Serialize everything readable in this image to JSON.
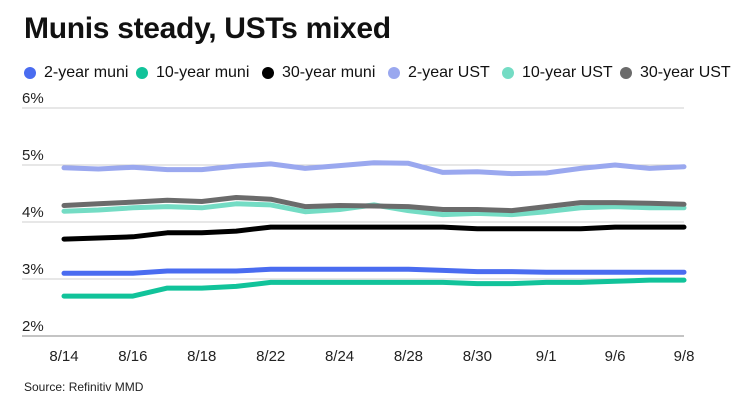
{
  "chart_data": {
    "type": "line",
    "title": "Munis steady, USTs mixed",
    "source": "Source: Refinitiv MMD",
    "y_unit_suffix": "%",
    "ylim": [
      2,
      6
    ],
    "yticks": [
      2,
      3,
      4,
      5,
      6
    ],
    "grid": "horizontal",
    "legend_position": "top",
    "x": [
      "8/14",
      "8/15",
      "8/16",
      "8/17",
      "8/18",
      "8/21",
      "8/22",
      "8/23",
      "8/24",
      "8/25",
      "8/28",
      "8/29",
      "8/30",
      "8/31",
      "9/1",
      "9/5",
      "9/6",
      "9/7",
      "9/8"
    ],
    "xticks": [
      "8/14",
      "8/16",
      "8/18",
      "8/22",
      "8/24",
      "8/28",
      "8/30",
      "9/1",
      "9/6",
      "9/8"
    ],
    "series": [
      {
        "name": "2-year muni",
        "color": "#4a6cf0",
        "values": [
          3.1,
          3.1,
          3.1,
          3.14,
          3.14,
          3.14,
          3.17,
          3.17,
          3.17,
          3.17,
          3.17,
          3.15,
          3.13,
          3.13,
          3.12,
          3.12,
          3.12,
          3.12,
          3.12
        ]
      },
      {
        "name": "10-year muni",
        "color": "#11c39a",
        "values": [
          2.7,
          2.7,
          2.7,
          2.84,
          2.84,
          2.87,
          2.94,
          2.94,
          2.94,
          2.94,
          2.94,
          2.94,
          2.92,
          2.92,
          2.94,
          2.94,
          2.96,
          2.98,
          2.98
        ]
      },
      {
        "name": "30-year muni",
        "color": "#000000",
        "values": [
          3.7,
          3.72,
          3.74,
          3.81,
          3.81,
          3.84,
          3.91,
          3.91,
          3.91,
          3.91,
          3.91,
          3.91,
          3.88,
          3.88,
          3.88,
          3.88,
          3.91,
          3.91,
          3.91
        ]
      },
      {
        "name": "2-year UST",
        "color": "#9aa8ef",
        "values": [
          4.95,
          4.93,
          4.96,
          4.92,
          4.92,
          4.98,
          5.02,
          4.94,
          4.99,
          5.04,
          5.03,
          4.87,
          4.88,
          4.85,
          4.86,
          4.94,
          5.0,
          4.94,
          4.97
        ]
      },
      {
        "name": "10-year UST",
        "color": "#74dcc4",
        "values": [
          4.19,
          4.21,
          4.25,
          4.27,
          4.25,
          4.32,
          4.3,
          4.18,
          4.22,
          4.3,
          4.2,
          4.13,
          4.15,
          4.13,
          4.18,
          4.25,
          4.27,
          4.25,
          4.25
        ]
      },
      {
        "name": "30-year UST",
        "color": "#6b6b6b",
        "values": [
          4.29,
          4.32,
          4.35,
          4.38,
          4.36,
          4.43,
          4.4,
          4.27,
          4.29,
          4.28,
          4.27,
          4.22,
          4.22,
          4.2,
          4.27,
          4.34,
          4.34,
          4.33,
          4.31
        ]
      }
    ]
  }
}
